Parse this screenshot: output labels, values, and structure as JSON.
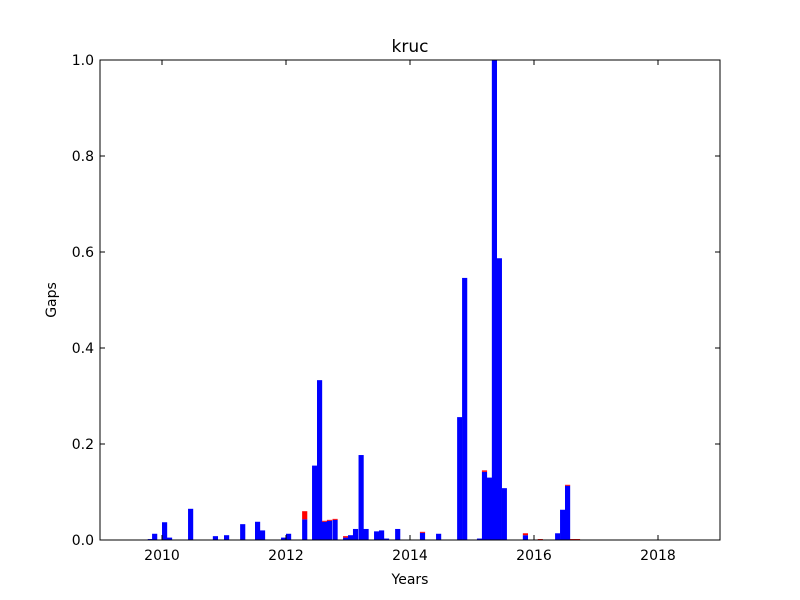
{
  "chart_data": {
    "type": "bar",
    "title": "kruc",
    "xlabel": "Years",
    "ylabel": "Gaps",
    "x": [
      2009.77,
      2009.84,
      2010.0,
      2010.08,
      2010.42,
      2010.82,
      2011.0,
      2011.26,
      2011.5,
      2011.58,
      2011.92,
      2012.0,
      2012.26,
      2012.42,
      2012.5,
      2012.58,
      2012.66,
      2012.75,
      2012.92,
      2013.0,
      2013.08,
      2013.17,
      2013.25,
      2013.42,
      2013.5,
      2013.58,
      2013.76,
      2014.16,
      2014.42,
      2014.76,
      2014.84,
      2015.08,
      2015.16,
      2015.24,
      2015.32,
      2015.4,
      2015.48,
      2015.82,
      2016.06,
      2016.34,
      2016.42,
      2016.5,
      2016.58,
      2016.66
    ],
    "series": [
      {
        "color": "#0000ff",
        "values": [
          0.002,
          0.013,
          0.037,
          0.005,
          0.065,
          0.008,
          0.01,
          0.033,
          0.038,
          0.02,
          0.005,
          0.013,
          0.043,
          0.155,
          0.333,
          0.038,
          0.04,
          0.042,
          0.005,
          0.01,
          0.023,
          0.177,
          0.023,
          0.018,
          0.02,
          0.003,
          0.023,
          0.015,
          0.013,
          0.256,
          0.546,
          0.003,
          0.142,
          0.13,
          1.0,
          0.587,
          0.108,
          0.01,
          0,
          0.014,
          0.063,
          0.113,
          0,
          0
        ]
      },
      {
        "color": "#ff0000",
        "values": [
          0,
          0,
          0,
          0,
          0,
          0,
          0,
          0,
          0,
          0,
          0,
          0,
          0.017,
          0,
          0,
          0.002,
          0.002,
          0.002,
          0.003,
          0,
          0,
          0,
          0,
          0,
          0,
          0,
          0,
          0.002,
          0,
          0,
          0,
          0,
          0.003,
          0,
          0,
          0,
          0,
          0.004,
          0.002,
          0,
          0,
          0.002,
          0.002,
          0.002
        ]
      }
    ],
    "xlim": [
      2009,
      2019
    ],
    "xticks": [
      2010,
      2012,
      2014,
      2016,
      2018
    ],
    "ylim": [
      0,
      1
    ],
    "yticks": [
      {
        "value": 0,
        "label": "0.0"
      },
      {
        "value": 0.2,
        "label": "0.2"
      },
      {
        "value": 0.4,
        "label": "0.4"
      },
      {
        "value": 0.6,
        "label": "0.6"
      },
      {
        "value": 0.8,
        "label": "0.8"
      },
      {
        "value": 1,
        "label": "1.0"
      }
    ]
  }
}
